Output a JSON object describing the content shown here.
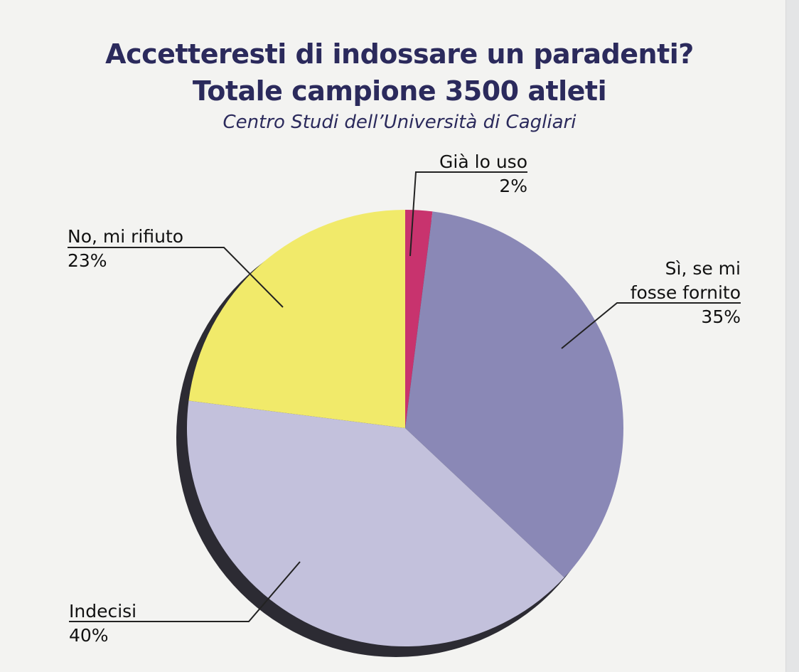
{
  "title_line_1": "Accetteresti di indossare un paradenti?",
  "title_line_2": "Totale campione 3500 atleti",
  "subtitle": "Centro Studi dell’Università di Cagliari",
  "colors": {
    "title": "#2b2a5c",
    "background": "#f3f3f1",
    "shadow": "#2c2b33",
    "leader": "#222222"
  },
  "chart_data": {
    "type": "pie",
    "title": "Accetteresti di indossare un paradenti? Totale campione 3500 atleti",
    "subtitle": "Centro Studi dell’Università di Cagliari",
    "start": "12 o'clock",
    "direction": "clockwise",
    "slices": [
      {
        "label_lines": [
          "Già lo uso"
        ],
        "percent_label": "2%",
        "value": 2,
        "color": "#c8336e"
      },
      {
        "label_lines": [
          "Sì, se mi",
          "fosse fornito"
        ],
        "percent_label": "35%",
        "value": 35,
        "color": "#8a88b6"
      },
      {
        "label_lines": [
          "Indecisi"
        ],
        "percent_label": "40%",
        "value": 40,
        "color": "#c3c1dc"
      },
      {
        "label_lines": [
          "No, mi rifiuto"
        ],
        "percent_label": "23%",
        "value": 23,
        "color": "#f1ea6a"
      }
    ]
  }
}
